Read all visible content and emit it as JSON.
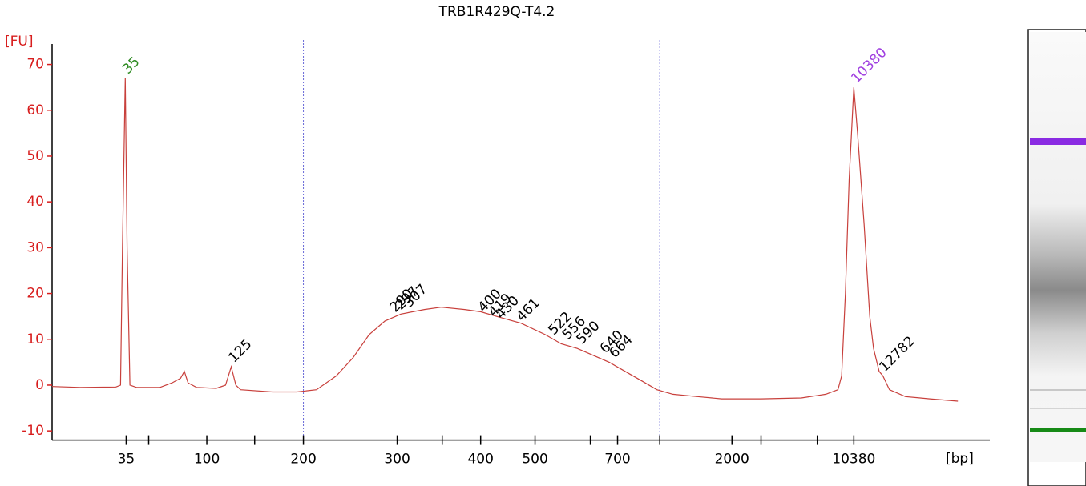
{
  "chart_data": {
    "type": "line",
    "title": "TRB1R429Q-T4.2",
    "ylabel": "[FU]",
    "xlabel": "[bp]",
    "color": "#c8403c",
    "axis_color": "#d81e1e",
    "x": [
      20.0,
      23.0,
      26.8,
      27.3,
      27.5,
      27.8,
      28.0,
      28.3,
      29.0,
      31.5,
      32.8,
      33.7,
      34.1,
      34.5,
      35.4,
      37.5,
      38.5,
      39.1,
      39.6,
      40.1,
      43.5,
      46.1,
      48.2,
      50.3,
      52.1,
      53.8,
      55.5,
      57.2,
      59.7,
      61.5,
      64.0,
      65.7,
      67.4,
      70.0,
      72.6,
      74.3,
      76.0,
      77.7,
      79.4,
      81.1,
      82.8,
      84.5,
      86.2,
      88.8,
      91.4,
      95.6,
      99.9,
      102.5,
      103.8,
      104.2,
      104.6,
      105.0,
      105.5,
      105.9,
      106.6,
      107.2,
      107.6,
      108.2,
      108.6,
      109.3,
      111.0,
      113.6,
      116.6
    ],
    "values": [
      -0.3,
      -0.5,
      -0.4,
      0,
      30,
      67,
      30,
      0,
      -0.5,
      -0.5,
      0.5,
      1.5,
      3,
      0.5,
      -0.5,
      -0.7,
      0,
      4,
      0,
      -1,
      -1.5,
      -1.5,
      -1,
      2,
      6,
      11,
      14,
      15.5,
      16.5,
      17,
      16.5,
      16,
      15,
      13.5,
      11,
      9,
      8,
      6.5,
      5,
      3,
      1,
      -1,
      -2,
      -2.5,
      -3,
      -3,
      -2.8,
      -2,
      -1,
      2,
      20,
      45,
      65,
      55,
      35,
      15,
      8,
      3,
      2,
      -1,
      -2.5,
      -3,
      -3.5
    ],
    "xlim": [
      20,
      120
    ],
    "ylim": [
      -12,
      74
    ],
    "yticks": [
      -10,
      0,
      10,
      20,
      30,
      40,
      50,
      60,
      70
    ],
    "xticks": [
      {
        "value": 27.9,
        "label": "35"
      },
      {
        "value": 36.5,
        "label": "100"
      },
      {
        "value": 46.8,
        "label": "200"
      },
      {
        "value": 56.8,
        "label": "300"
      },
      {
        "value": 65.7,
        "label": "400"
      },
      {
        "value": 71.5,
        "label": "500"
      },
      {
        "value": 80.3,
        "label": "700"
      },
      {
        "value": 92.5,
        "label": "2000"
      },
      {
        "value": 105.5,
        "label": "10380"
      }
    ],
    "xminorticks": [
      30.3,
      41.6,
      61.6,
      77.4,
      84.8,
      95.6,
      101.6
    ],
    "region": [
      46.8,
      84.8
    ],
    "peaks": [
      {
        "label": "35",
        "x": 27.8,
        "value": 67,
        "color": "#2e8b22"
      },
      {
        "label": "125",
        "x": 39.1,
        "value": 4,
        "color": "#000000"
      },
      {
        "label": "290",
        "x": 56.3,
        "value": 15,
        "color": "#000000"
      },
      {
        "label": "297",
        "x": 56.9,
        "value": 15.5,
        "color": "#000000"
      },
      {
        "label": "307",
        "x": 57.8,
        "value": 16,
        "color": "#000000"
      },
      {
        "label": "400",
        "x": 65.7,
        "value": 15,
        "color": "#000000"
      },
      {
        "label": "419",
        "x": 66.8,
        "value": 14,
        "color": "#000000"
      },
      {
        "label": "430",
        "x": 67.6,
        "value": 13.5,
        "color": "#000000"
      },
      {
        "label": "461",
        "x": 69.8,
        "value": 13,
        "color": "#000000"
      },
      {
        "label": "522",
        "x": 73.2,
        "value": 10,
        "color": "#000000"
      },
      {
        "label": "556",
        "x": 74.7,
        "value": 9,
        "color": "#000000"
      },
      {
        "label": "590",
        "x": 76.2,
        "value": 8,
        "color": "#000000"
      },
      {
        "label": "640",
        "x": 78.7,
        "value": 6,
        "color": "#000000"
      },
      {
        "label": "664",
        "x": 79.7,
        "value": 5,
        "color": "#000000"
      },
      {
        "label": "10380",
        "x": 105.5,
        "value": 65,
        "color": "#a040e0"
      },
      {
        "label": "12782",
        "x": 108.5,
        "value": 2,
        "color": "#000000"
      }
    ]
  }
}
